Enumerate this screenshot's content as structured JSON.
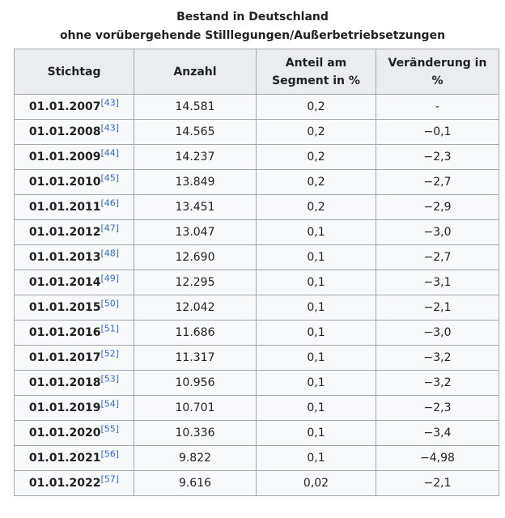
{
  "caption": {
    "line1": "Bestand in Deutschland",
    "line2": "ohne vorübergehende Stilllegungen/Außerbetriebsetzungen"
  },
  "headers": {
    "stichtag": "Stichtag",
    "anzahl": "Anzahl",
    "anteil_line1": "Anteil am",
    "anteil_line2": "Segment in %",
    "veraenderung": "Veränderung in %"
  },
  "rows": [
    {
      "date": "01.01.2007",
      "ref": "[43]",
      "anzahl": "14.581",
      "anteil": "0,2",
      "veraenderung": "-"
    },
    {
      "date": "01.01.2008",
      "ref": "[43]",
      "anzahl": "14.565",
      "anteil": "0,2",
      "veraenderung": "−0,1"
    },
    {
      "date": "01.01.2009",
      "ref": "[44]",
      "anzahl": "14.237",
      "anteil": "0,2",
      "veraenderung": "−2,3"
    },
    {
      "date": "01.01.2010",
      "ref": "[45]",
      "anzahl": "13.849",
      "anteil": "0,2",
      "veraenderung": "−2,7"
    },
    {
      "date": "01.01.2011",
      "ref": "[46]",
      "anzahl": "13.451",
      "anteil": "0,2",
      "veraenderung": "−2,9"
    },
    {
      "date": "01.01.2012",
      "ref": "[47]",
      "anzahl": "13.047",
      "anteil": "0,1",
      "veraenderung": "−3,0"
    },
    {
      "date": "01.01.2013",
      "ref": "[48]",
      "anzahl": "12.690",
      "anteil": "0,1",
      "veraenderung": "−2,7"
    },
    {
      "date": "01.01.2014",
      "ref": "[49]",
      "anzahl": "12.295",
      "anteil": "0,1",
      "veraenderung": "−3,1"
    },
    {
      "date": "01.01.2015",
      "ref": "[50]",
      "anzahl": "12.042",
      "anteil": "0,1",
      "veraenderung": "−2,1"
    },
    {
      "date": "01.01.2016",
      "ref": "[51]",
      "anzahl": "11.686",
      "anteil": "0,1",
      "veraenderung": "−3,0"
    },
    {
      "date": "01.01.2017",
      "ref": "[52]",
      "anzahl": "11.317",
      "anteil": "0,1",
      "veraenderung": "−3,2"
    },
    {
      "date": "01.01.2018",
      "ref": "[53]",
      "anzahl": "10.956",
      "anteil": "0,1",
      "veraenderung": "−3,2"
    },
    {
      "date": "01.01.2019",
      "ref": "[54]",
      "anzahl": "10.701",
      "anteil": "0,1",
      "veraenderung": "−2,3"
    },
    {
      "date": "01.01.2020",
      "ref": "[55]",
      "anzahl": "10.336",
      "anteil": "0,1",
      "veraenderung": "−3,4"
    },
    {
      "date": "01.01.2021",
      "ref": "[56]",
      "anzahl": "9.822",
      "anteil": "0,1",
      "veraenderung": "−4,98"
    },
    {
      "date": "01.01.2022",
      "ref": "[57]",
      "anzahl": "9.616",
      "anteil": "0,02",
      "veraenderung": "−2,1"
    }
  ],
  "colors": {
    "header_bg": "#eaecf0",
    "cell_bg": "#f8f9fa",
    "border": "#a2a9b1",
    "link": "#3366cc",
    "text": "#202122"
  }
}
